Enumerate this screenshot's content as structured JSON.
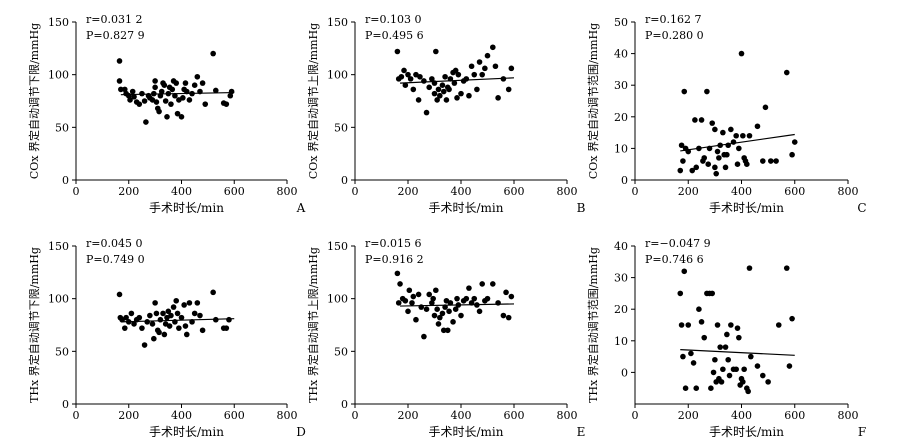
{
  "chart_data": [
    {
      "type": "scatter",
      "panel_label": "A",
      "xlabel": "手术时长/min",
      "ylabel": "COx 界定自动调节下限/mmHg",
      "xlim": [
        0,
        800
      ],
      "ylim": [
        0,
        150
      ],
      "x_ticks": [
        "0",
        "200",
        "400",
        "600",
        "800"
      ],
      "y_ticks": [
        "0",
        "50",
        "100",
        "150"
      ],
      "stats": {
        "r": "r=0.031 2",
        "p": "P=0.827 9"
      },
      "trend": {
        "x": [
          170,
          600
        ],
        "y": [
          81,
          83
        ]
      },
      "points": [
        [
          165,
          113
        ],
        [
          165,
          94
        ],
        [
          170,
          86
        ],
        [
          185,
          86
        ],
        [
          190,
          82
        ],
        [
          200,
          80
        ],
        [
          205,
          76
        ],
        [
          215,
          84
        ],
        [
          220,
          79
        ],
        [
          230,
          74
        ],
        [
          240,
          72
        ],
        [
          250,
          82
        ],
        [
          260,
          75
        ],
        [
          265,
          55
        ],
        [
          275,
          80
        ],
        [
          280,
          78
        ],
        [
          290,
          76
        ],
        [
          295,
          82
        ],
        [
          300,
          88
        ],
        [
          300,
          94
        ],
        [
          305,
          74
        ],
        [
          310,
          68
        ],
        [
          315,
          65
        ],
        [
          320,
          80
        ],
        [
          325,
          84
        ],
        [
          330,
          92
        ],
        [
          335,
          90
        ],
        [
          340,
          75
        ],
        [
          345,
          60
        ],
        [
          350,
          82
        ],
        [
          355,
          88
        ],
        [
          360,
          72
        ],
        [
          365,
          86
        ],
        [
          370,
          94
        ],
        [
          375,
          80
        ],
        [
          380,
          92
        ],
        [
          385,
          63
        ],
        [
          390,
          76
        ],
        [
          400,
          60
        ],
        [
          405,
          78
        ],
        [
          410,
          86
        ],
        [
          415,
          92
        ],
        [
          420,
          84
        ],
        [
          430,
          76
        ],
        [
          440,
          82
        ],
        [
          450,
          90
        ],
        [
          460,
          98
        ],
        [
          470,
          84
        ],
        [
          480,
          92
        ],
        [
          490,
          72
        ],
        [
          520,
          120
        ],
        [
          530,
          85
        ],
        [
          560,
          73
        ],
        [
          570,
          72
        ],
        [
          585,
          80
        ],
        [
          590,
          84
        ]
      ]
    },
    {
      "type": "scatter",
      "panel_label": "B",
      "xlabel": "手术时长/min",
      "ylabel": "COx 界定自动调节上限/mmHg",
      "xlim": [
        0,
        800
      ],
      "ylim": [
        0,
        150
      ],
      "x_ticks": [
        "0",
        "200",
        "400",
        "600",
        "800"
      ],
      "y_ticks": [
        "0",
        "50",
        "100",
        "150"
      ],
      "stats": {
        "r": "r=0.103 0",
        "p": "P=0.495 6"
      },
      "trend": {
        "x": [
          170,
          600
        ],
        "y": [
          92,
          97
        ]
      },
      "points": [
        [
          160,
          122
        ],
        [
          165,
          96
        ],
        [
          175,
          98
        ],
        [
          185,
          104
        ],
        [
          190,
          90
        ],
        [
          200,
          100
        ],
        [
          210,
          96
        ],
        [
          220,
          86
        ],
        [
          230,
          100
        ],
        [
          240,
          76
        ],
        [
          245,
          98
        ],
        [
          260,
          94
        ],
        [
          270,
          64
        ],
        [
          280,
          88
        ],
        [
          290,
          96
        ],
        [
          300,
          82
        ],
        [
          300,
          92
        ],
        [
          305,
          122
        ],
        [
          310,
          76
        ],
        [
          315,
          86
        ],
        [
          320,
          80
        ],
        [
          330,
          90
        ],
        [
          335,
          84
        ],
        [
          340,
          98
        ],
        [
          345,
          76
        ],
        [
          350,
          88
        ],
        [
          355,
          86
        ],
        [
          360,
          96
        ],
        [
          370,
          102
        ],
        [
          375,
          92
        ],
        [
          380,
          104
        ],
        [
          385,
          78
        ],
        [
          390,
          100
        ],
        [
          400,
          82
        ],
        [
          410,
          94
        ],
        [
          420,
          96
        ],
        [
          430,
          80
        ],
        [
          440,
          108
        ],
        [
          450,
          100
        ],
        [
          460,
          86
        ],
        [
          470,
          112
        ],
        [
          480,
          100
        ],
        [
          490,
          106
        ],
        [
          500,
          118
        ],
        [
          520,
          126
        ],
        [
          530,
          108
        ],
        [
          540,
          78
        ],
        [
          560,
          96
        ],
        [
          580,
          86
        ],
        [
          590,
          106
        ]
      ]
    },
    {
      "type": "scatter",
      "panel_label": "C",
      "xlabel": "手术时长/min",
      "ylabel": "COx 界定自动调节范围/mmHg",
      "xlim": [
        0,
        800
      ],
      "ylim": [
        0,
        50
      ],
      "x_ticks": [
        "0",
        "200",
        "400",
        "600",
        "800"
      ],
      "y_ticks": [
        "0",
        "10",
        "20",
        "30",
        "40",
        "50"
      ],
      "stats": {
        "r": "r=0.162 7",
        "p": "P=0.280 0"
      },
      "trend": {
        "x": [
          170,
          600
        ],
        "y": [
          9.2,
          14.4
        ]
      },
      "points": [
        [
          170,
          3
        ],
        [
          175,
          11
        ],
        [
          180,
          6
        ],
        [
          185,
          28
        ],
        [
          190,
          10
        ],
        [
          200,
          9
        ],
        [
          215,
          3
        ],
        [
          225,
          19
        ],
        [
          230,
          4
        ],
        [
          240,
          10
        ],
        [
          250,
          19
        ],
        [
          255,
          6
        ],
        [
          260,
          7
        ],
        [
          270,
          28
        ],
        [
          275,
          5
        ],
        [
          280,
          10
        ],
        [
          290,
          18
        ],
        [
          300,
          16
        ],
        [
          300,
          4
        ],
        [
          305,
          2
        ],
        [
          310,
          9
        ],
        [
          315,
          7
        ],
        [
          320,
          11
        ],
        [
          330,
          15
        ],
        [
          335,
          8
        ],
        [
          340,
          4
        ],
        [
          345,
          8
        ],
        [
          350,
          11
        ],
        [
          360,
          16
        ],
        [
          370,
          12
        ],
        [
          380,
          14
        ],
        [
          385,
          5
        ],
        [
          390,
          10
        ],
        [
          400,
          40
        ],
        [
          405,
          14
        ],
        [
          410,
          7
        ],
        [
          415,
          6
        ],
        [
          420,
          5
        ],
        [
          430,
          14
        ],
        [
          460,
          17
        ],
        [
          480,
          6
        ],
        [
          490,
          23
        ],
        [
          510,
          6
        ],
        [
          530,
          6
        ],
        [
          570,
          34
        ],
        [
          590,
          8
        ],
        [
          600,
          12
        ]
      ]
    },
    {
      "type": "scatter",
      "panel_label": "D",
      "xlabel": "手术时长/min",
      "ylabel": "THx 界定自动调节下限/mmHg",
      "xlim": [
        0,
        800
      ],
      "ylim": [
        0,
        150
      ],
      "x_ticks": [
        "0",
        "200",
        "400",
        "600",
        "800"
      ],
      "y_ticks": [
        "0",
        "50",
        "100",
        "150"
      ],
      "stats": {
        "r": "r=0.045 0",
        "p": "P=0.749 0"
      },
      "trend": {
        "x": [
          170,
          600
        ],
        "y": [
          78,
          81
        ]
      },
      "points": [
        [
          165,
          104
        ],
        [
          168,
          82
        ],
        [
          175,
          80
        ],
        [
          185,
          72
        ],
        [
          190,
          82
        ],
        [
          200,
          78
        ],
        [
          210,
          86
        ],
        [
          220,
          76
        ],
        [
          230,
          80
        ],
        [
          240,
          82
        ],
        [
          250,
          72
        ],
        [
          260,
          56
        ],
        [
          270,
          78
        ],
        [
          280,
          84
        ],
        [
          290,
          76
        ],
        [
          295,
          62
        ],
        [
          300,
          96
        ],
        [
          305,
          86
        ],
        [
          310,
          70
        ],
        [
          315,
          68
        ],
        [
          320,
          80
        ],
        [
          330,
          86
        ],
        [
          335,
          66
        ],
        [
          340,
          76
        ],
        [
          345,
          82
        ],
        [
          350,
          88
        ],
        [
          355,
          74
        ],
        [
          360,
          84
        ],
        [
          370,
          92
        ],
        [
          375,
          78
        ],
        [
          380,
          98
        ],
        [
          385,
          86
        ],
        [
          390,
          72
        ],
        [
          400,
          82
        ],
        [
          410,
          94
        ],
        [
          415,
          74
        ],
        [
          420,
          66
        ],
        [
          430,
          96
        ],
        [
          440,
          78
        ],
        [
          450,
          86
        ],
        [
          460,
          96
        ],
        [
          470,
          84
        ],
        [
          480,
          70
        ],
        [
          520,
          106
        ],
        [
          530,
          80
        ],
        [
          560,
          72
        ],
        [
          570,
          72
        ],
        [
          580,
          80
        ]
      ]
    },
    {
      "type": "scatter",
      "panel_label": "E",
      "xlabel": "手术时长/min",
      "ylabel": "THx 界定自动调节上限/mmHg",
      "xlim": [
        0,
        800
      ],
      "ylim": [
        0,
        150
      ],
      "x_ticks": [
        "0",
        "200",
        "400",
        "600",
        "800"
      ],
      "y_ticks": [
        "0",
        "50",
        "100",
        "150"
      ],
      "stats": {
        "r": "r=0.015 6",
        "p": "P=0.916 2"
      },
      "trend": {
        "x": [
          170,
          600
        ],
        "y": [
          93,
          95
        ]
      },
      "points": [
        [
          160,
          124
        ],
        [
          165,
          96
        ],
        [
          170,
          114
        ],
        [
          180,
          100
        ],
        [
          190,
          98
        ],
        [
          200,
          88
        ],
        [
          205,
          108
        ],
        [
          215,
          96
        ],
        [
          220,
          102
        ],
        [
          230,
          80
        ],
        [
          240,
          104
        ],
        [
          250,
          92
        ],
        [
          260,
          64
        ],
        [
          270,
          90
        ],
        [
          280,
          104
        ],
        [
          290,
          96
        ],
        [
          295,
          100
        ],
        [
          300,
          84
        ],
        [
          305,
          108
        ],
        [
          310,
          90
        ],
        [
          315,
          76
        ],
        [
          320,
          82
        ],
        [
          330,
          86
        ],
        [
          335,
          70
        ],
        [
          340,
          92
        ],
        [
          345,
          98
        ],
        [
          350,
          70
        ],
        [
          355,
          88
        ],
        [
          360,
          96
        ],
        [
          370,
          78
        ],
        [
          380,
          90
        ],
        [
          385,
          100
        ],
        [
          390,
          94
        ],
        [
          400,
          84
        ],
        [
          410,
          98
        ],
        [
          420,
          100
        ],
        [
          430,
          110
        ],
        [
          440,
          96
        ],
        [
          450,
          100
        ],
        [
          460,
          94
        ],
        [
          470,
          88
        ],
        [
          480,
          114
        ],
        [
          490,
          98
        ],
        [
          500,
          100
        ],
        [
          520,
          114
        ],
        [
          540,
          96
        ],
        [
          560,
          84
        ],
        [
          570,
          106
        ],
        [
          580,
          82
        ],
        [
          590,
          102
        ]
      ]
    },
    {
      "type": "scatter",
      "panel_label": "F",
      "xlabel": "手术时长/min",
      "ylabel": "THx 界定自动调节范围/mmHg",
      "xlim": [
        0,
        800
      ],
      "ylim": [
        -10,
        40
      ],
      "x_ticks": [
        "0",
        "200",
        "400",
        "600",
        "800"
      ],
      "y_ticks": [
        "0",
        "10",
        "20",
        "30",
        "40"
      ],
      "stats": {
        "r": "r=−0.047 9",
        "p": "P=0.746 6"
      },
      "trend": {
        "x": [
          170,
          600
        ],
        "y": [
          7.2,
          5.4
        ]
      },
      "points": [
        [
          170,
          25
        ],
        [
          175,
          15
        ],
        [
          180,
          5
        ],
        [
          185,
          32
        ],
        [
          190,
          -5
        ],
        [
          200,
          15
        ],
        [
          210,
          6
        ],
        [
          220,
          3
        ],
        [
          230,
          -5
        ],
        [
          240,
          20
        ],
        [
          250,
          16
        ],
        [
          260,
          11
        ],
        [
          270,
          25
        ],
        [
          280,
          25
        ],
        [
          285,
          -5
        ],
        [
          290,
          25
        ],
        [
          295,
          0
        ],
        [
          300,
          4
        ],
        [
          305,
          -3
        ],
        [
          310,
          15
        ],
        [
          315,
          -2
        ],
        [
          320,
          8
        ],
        [
          325,
          -3
        ],
        [
          330,
          1
        ],
        [
          340,
          8
        ],
        [
          345,
          12
        ],
        [
          350,
          4
        ],
        [
          355,
          -1
        ],
        [
          360,
          15
        ],
        [
          370,
          1
        ],
        [
          380,
          1
        ],
        [
          385,
          14
        ],
        [
          390,
          11
        ],
        [
          395,
          -4
        ],
        [
          400,
          -2
        ],
        [
          405,
          -3
        ],
        [
          410,
          1
        ],
        [
          420,
          -5
        ],
        [
          425,
          -6
        ],
        [
          430,
          33
        ],
        [
          435,
          5
        ],
        [
          460,
          2
        ],
        [
          480,
          -1
        ],
        [
          500,
          -3
        ],
        [
          540,
          15
        ],
        [
          570,
          33
        ],
        [
          580,
          2
        ],
        [
          590,
          17
        ]
      ]
    }
  ]
}
